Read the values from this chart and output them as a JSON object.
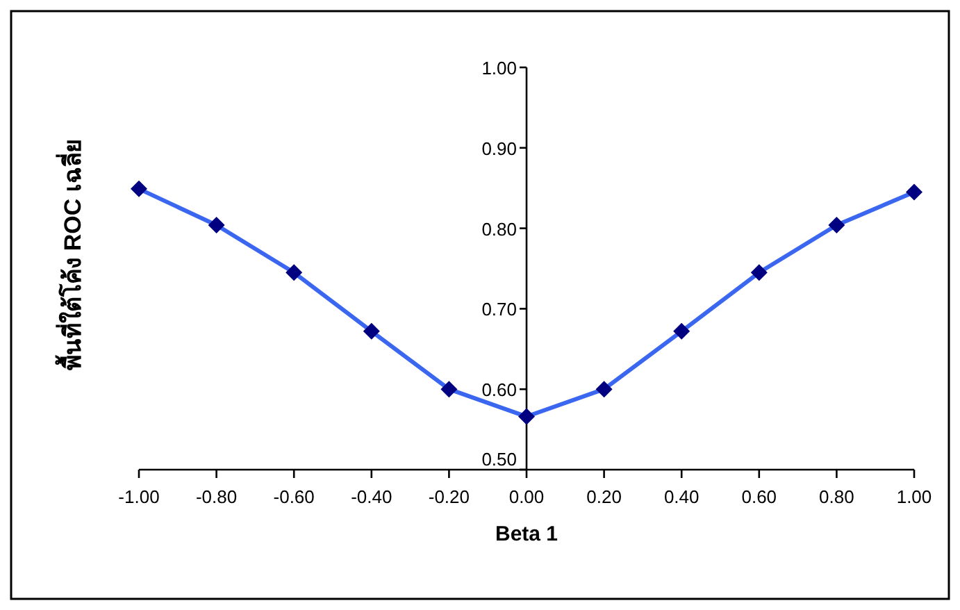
{
  "chart_data": {
    "type": "line",
    "xlabel": "Beta 1",
    "ylabel": "พื้นที่ใต้โค้ง ROC เฉลี่ย",
    "x": [
      -1,
      -0.8,
      -0.6,
      -0.4,
      -0.2,
      0,
      0.2,
      0.4,
      0.6,
      0.8,
      1
    ],
    "series": [
      {
        "color": "#3a66f0",
        "values": [
          0.849,
          0.804,
          0.745,
          0.672,
          0.6,
          0.566,
          0.6,
          0.672,
          0.745,
          0.804,
          0.845
        ]
      }
    ],
    "marker": "diamond",
    "grid": false,
    "xlim": [
      -1,
      1
    ],
    "ylim": [
      0.5,
      1
    ],
    "xticks": [
      {
        "value": -1,
        "label": "-1.00"
      },
      {
        "value": -0.8,
        "label": "-0.80"
      },
      {
        "value": -0.6,
        "label": "-0.60"
      },
      {
        "value": -0.4,
        "label": "-0.40"
      },
      {
        "value": -0.2,
        "label": "-0.20"
      },
      {
        "value": 0,
        "label": "0.00"
      },
      {
        "value": 0.2,
        "label": "0.20"
      },
      {
        "value": 0.4,
        "label": "0.40"
      },
      {
        "value": 0.6,
        "label": "0.60"
      },
      {
        "value": 0.8,
        "label": "0.80"
      },
      {
        "value": 1,
        "label": "1.00"
      }
    ],
    "yticks": [
      {
        "value": 0.5,
        "label": "0.50"
      },
      {
        "value": 0.6,
        "label": "0.60"
      },
      {
        "value": 0.7,
        "label": "0.70"
      },
      {
        "value": 0.8,
        "label": "0.80"
      },
      {
        "value": 0.9,
        "label": "0.90"
      },
      {
        "value": 1,
        "label": "1.00"
      }
    ]
  }
}
